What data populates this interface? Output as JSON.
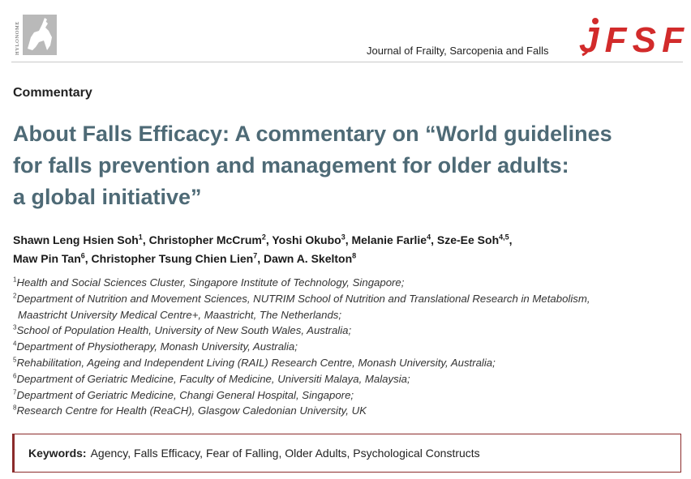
{
  "header": {
    "publisher_logo_text": "HYLONOME",
    "journal_name": "Journal of Frailty, Sarcopenia and Falls",
    "journal_logo_text": "JFSF",
    "accent_color": "#d22b2b"
  },
  "section_label": "Commentary",
  "title_lines": [
    "About Falls Efficacy: A commentary on “World guidelines",
    "for falls prevention and management for older adults:",
    "a global initiative”"
  ],
  "authors": [
    {
      "name": "Shawn Leng Hsien Soh",
      "sup": "1"
    },
    {
      "name": "Christopher McCrum",
      "sup": "2"
    },
    {
      "name": "Yoshi Okubo",
      "sup": "3"
    },
    {
      "name": "Melanie Farlie",
      "sup": "4"
    },
    {
      "name": "Sze-Ee Soh",
      "sup": "4,5"
    },
    {
      "name": "Maw Pin Tan",
      "sup": "6"
    },
    {
      "name": "Christopher Tsung Chien Lien",
      "sup": "7"
    },
    {
      "name": "Dawn A. Skelton",
      "sup": "8"
    }
  ],
  "affiliations": [
    {
      "num": "1",
      "lines": [
        "Health and Social Sciences Cluster, Singapore Institute of Technology, Singapore;"
      ]
    },
    {
      "num": "2",
      "lines": [
        "Department of Nutrition and Movement Sciences, NUTRIM School of Nutrition and Translational Research in Metabolism,",
        "Maastricht University Medical Centre+, Maastricht, The Netherlands;"
      ]
    },
    {
      "num": "3",
      "lines": [
        "School of Population Health, University of New South Wales, Australia;"
      ]
    },
    {
      "num": "4",
      "lines": [
        "Department of Physiotherapy, Monash University, Australia;"
      ]
    },
    {
      "num": "5",
      "lines": [
        "Rehabilitation, Ageing and Independent Living (RAIL) Research Centre, Monash University, Australia;"
      ]
    },
    {
      "num": "6",
      "lines": [
        "Department of Geriatric Medicine, Faculty of Medicine, Universiti Malaya, Malaysia;"
      ]
    },
    {
      "num": "7",
      "lines": [
        "Department of Geriatric Medicine, Changi General Hospital, Singapore;"
      ]
    },
    {
      "num": "8",
      "lines": [
        "Research Centre for Health (ReaCH), Glasgow Caledonian University, UK"
      ]
    }
  ],
  "keywords": {
    "label": "Keywords:",
    "text": "Agency, Falls Efficacy, Fear of Falling, Older Adults, Psychological Constructs"
  }
}
